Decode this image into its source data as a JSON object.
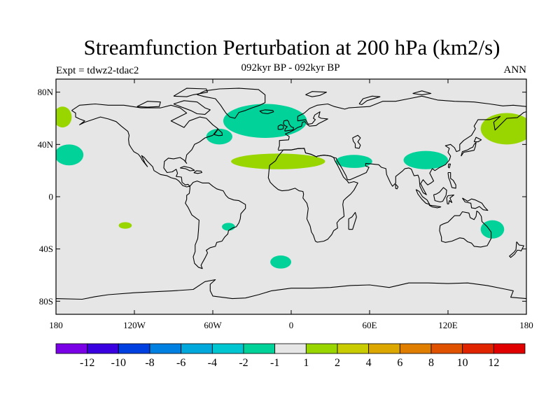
{
  "title": "Streamfunction Perturbation at 200 hPa (km2/s)",
  "subtitle": "092kyr BP - 092kyr BP",
  "left_label": "Expt = tdwz2-tdac2",
  "right_label": "ANN",
  "colors": {
    "land_background": "#e6e6e6",
    "coastline": "#000000"
  },
  "map": {
    "lat_ticks": [
      {
        "lat": 80,
        "label": "80N"
      },
      {
        "lat": 40,
        "label": "40N"
      },
      {
        "lat": 0,
        "label": "0"
      },
      {
        "lat": -40,
        "label": "40S"
      },
      {
        "lat": -80,
        "label": "80S"
      }
    ],
    "lon_ticks": [
      {
        "lon": -180,
        "label": "180"
      },
      {
        "lon": -120,
        "label": "120W"
      },
      {
        "lon": -60,
        "label": "60W"
      },
      {
        "lon": 0,
        "label": "0"
      },
      {
        "lon": 60,
        "label": "60E"
      },
      {
        "lon": 120,
        "label": "120E"
      },
      {
        "lon": 180,
        "label": "180"
      }
    ],
    "regions": [
      {
        "name": "north-atlantic-negative",
        "color": "#00d29a",
        "center": [
          -20,
          58
        ],
        "radius": [
          32,
          13
        ]
      },
      {
        "name": "north-atlantic-tail",
        "color": "#00d29a",
        "center": [
          -55,
          46
        ],
        "radius": [
          10,
          6
        ]
      },
      {
        "name": "subtropical-atlantic-positive",
        "color": "#99d600",
        "center": [
          -10,
          27
        ],
        "radius": [
          36,
          6
        ]
      },
      {
        "name": "arabia-negative",
        "color": "#00d29a",
        "center": [
          48,
          27
        ],
        "radius": [
          14,
          5
        ]
      },
      {
        "name": "tibet-negative",
        "color": "#00d29a",
        "center": [
          103,
          28
        ],
        "radius": [
          17,
          7
        ]
      },
      {
        "name": "north-pacific-west-positive",
        "color": "#99d600",
        "center": [
          165,
          52
        ],
        "radius": [
          20,
          12
        ]
      },
      {
        "name": "north-pacific-east-positive",
        "color": "#99d600",
        "center": [
          -175,
          61
        ],
        "radius": [
          7,
          8
        ]
      },
      {
        "name": "central-pacific-negative",
        "color": "#00d29a",
        "center": [
          -170,
          32
        ],
        "radius": [
          11,
          8
        ]
      },
      {
        "name": "south-atlantic-negative",
        "color": "#00d29a",
        "center": [
          -48,
          -23
        ],
        "radius": [
          5,
          3
        ]
      },
      {
        "name": "south-pacific-positive",
        "color": "#99d600",
        "center": [
          -127,
          -22
        ],
        "radius": [
          5,
          2.5
        ]
      },
      {
        "name": "southern-ocean-negative",
        "color": "#00d29a",
        "center": [
          -8,
          -50
        ],
        "radius": [
          8,
          5
        ]
      },
      {
        "name": "australia-negative",
        "color": "#00d29a",
        "center": [
          154,
          -25
        ],
        "radius": [
          9,
          7
        ]
      }
    ]
  },
  "colorbar": {
    "labels": [
      "-12",
      "-10",
      "-8",
      "-6",
      "-4",
      "-2",
      "-1",
      "1",
      "2",
      "4",
      "6",
      "8",
      "10",
      "12"
    ],
    "colors": [
      "#7a00e6",
      "#3a00e0",
      "#0040e0",
      "#0080e0",
      "#00a8dc",
      "#00c6d2",
      "#00d29a",
      "#e6e6e6",
      "#99d600",
      "#c8cc00",
      "#dca800",
      "#e07e00",
      "#e05200",
      "#e02400",
      "#e00000"
    ]
  }
}
